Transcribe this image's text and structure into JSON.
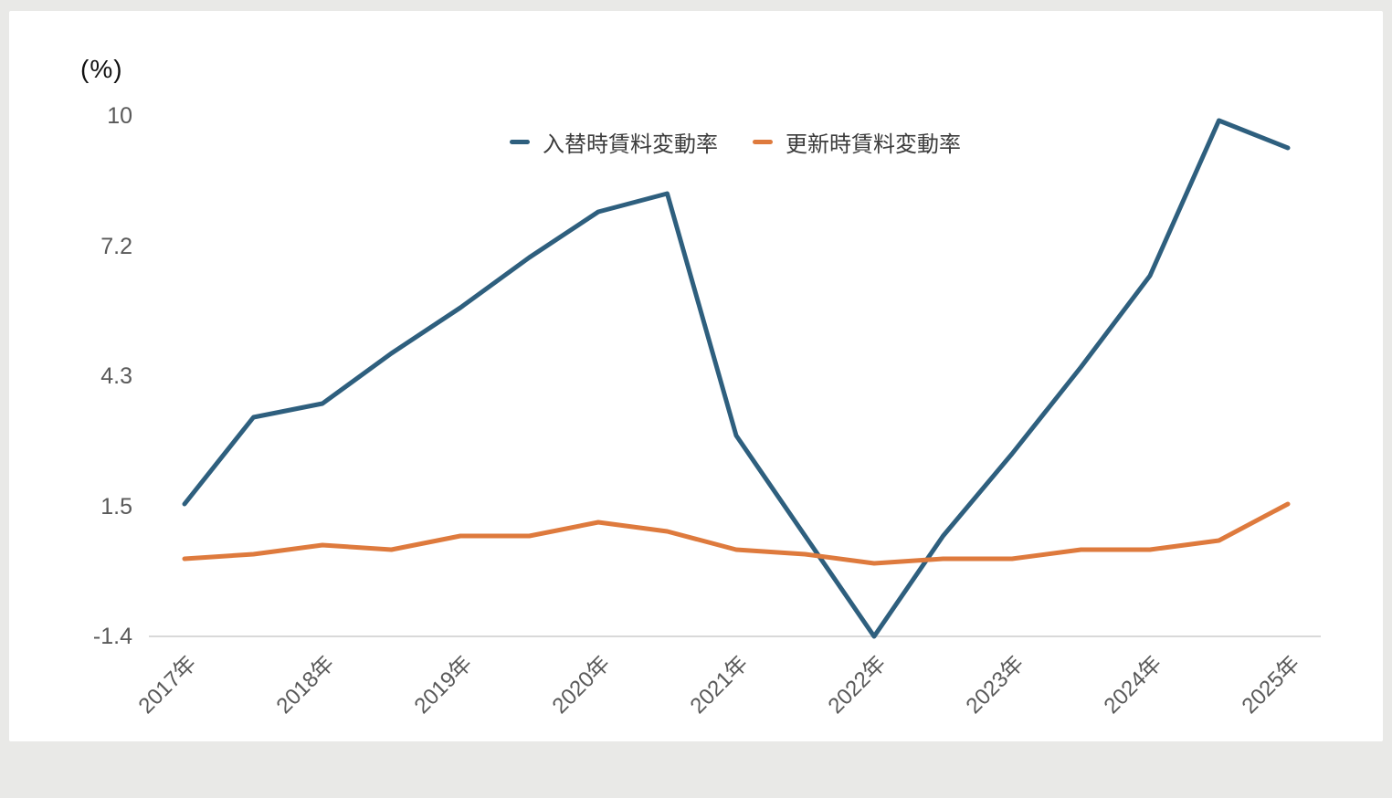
{
  "chart_data": {
    "type": "line",
    "unit": "(%)",
    "x": [
      2017,
      2017.5,
      2018,
      2018.5,
      2019,
      2019.5,
      2020,
      2020.5,
      2021,
      2021.5,
      2022,
      2022.5,
      2023,
      2023.5,
      2024,
      2024.5,
      2025
    ],
    "x_tick_labels": [
      "2017年",
      "2018年",
      "2019年",
      "2020年",
      "2021年",
      "2022年",
      "2023年",
      "2024年",
      "2025年"
    ],
    "y_ticks": [
      {
        "label": "10",
        "value": 10
      },
      {
        "label": "7.2",
        "value": 7.15
      },
      {
        "label": "4.3",
        "value": 4.3
      },
      {
        "label": "1.5",
        "value": 1.45
      },
      {
        "label": "-1.4",
        "value": -1.4
      }
    ],
    "ylim": [
      -1.4,
      10
    ],
    "grid": false,
    "legend_position": "top-center",
    "series": [
      {
        "name": "入替時賃料変動率",
        "color": "#2E5F7E",
        "values": [
          1.5,
          3.4,
          3.7,
          4.8,
          5.8,
          6.9,
          7.9,
          8.3,
          3.0,
          0.8,
          -1.4,
          0.8,
          2.6,
          4.5,
          6.5,
          9.9,
          9.3
        ]
      },
      {
        "name": "更新時賃料変動率",
        "color": "#DE7A3D",
        "values": [
          0.3,
          0.4,
          0.6,
          0.5,
          0.8,
          0.8,
          1.1,
          0.9,
          0.5,
          0.4,
          0.2,
          0.3,
          0.3,
          0.5,
          0.5,
          0.7,
          1.5
        ]
      }
    ],
    "colors": {
      "axis_line": "#D9D9D9",
      "tick_label": "#595959",
      "unit_label": "#111111",
      "background": "#FFFFFF",
      "page_background": "#E9E9E7"
    }
  }
}
